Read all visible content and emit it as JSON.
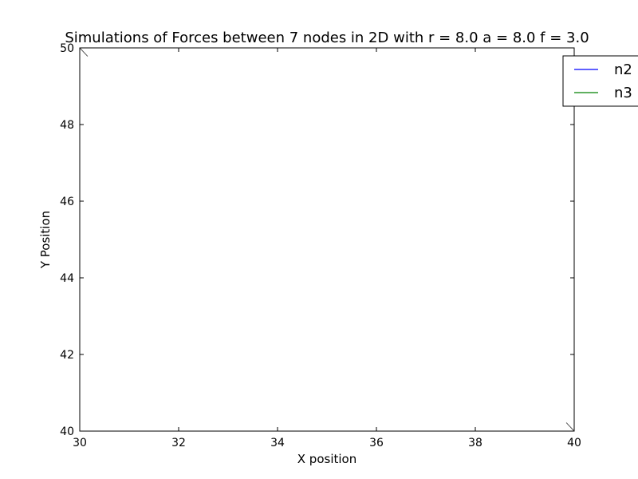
{
  "chart_data": {
    "type": "line",
    "title": "Simulations of Forces between 7 nodes in 2D with r = 8.0 a = 8.0 f = 3.0",
    "xlabel": "X position",
    "ylabel": "Y Position",
    "xlim": [
      30,
      40
    ],
    "ylim": [
      40,
      50
    ],
    "xticks": [
      30,
      32,
      34,
      36,
      38,
      40
    ],
    "yticks": [
      40,
      42,
      44,
      46,
      48,
      50
    ],
    "grid": false,
    "legend": {
      "placement": "top-right"
    },
    "series": [
      {
        "name": "n2",
        "color": "#0000ff",
        "x": [],
        "y": []
      },
      {
        "name": "n3",
        "color": "#008000",
        "x": [],
        "y": []
      }
    ],
    "trace_marks": [
      {
        "x": [
          30.0,
          30.16
        ],
        "y": [
          50.0,
          49.78
        ],
        "color": "#555555"
      },
      {
        "x": [
          39.84,
          40.0
        ],
        "y": [
          40.22,
          40.0
        ],
        "color": "#555555"
      }
    ]
  }
}
